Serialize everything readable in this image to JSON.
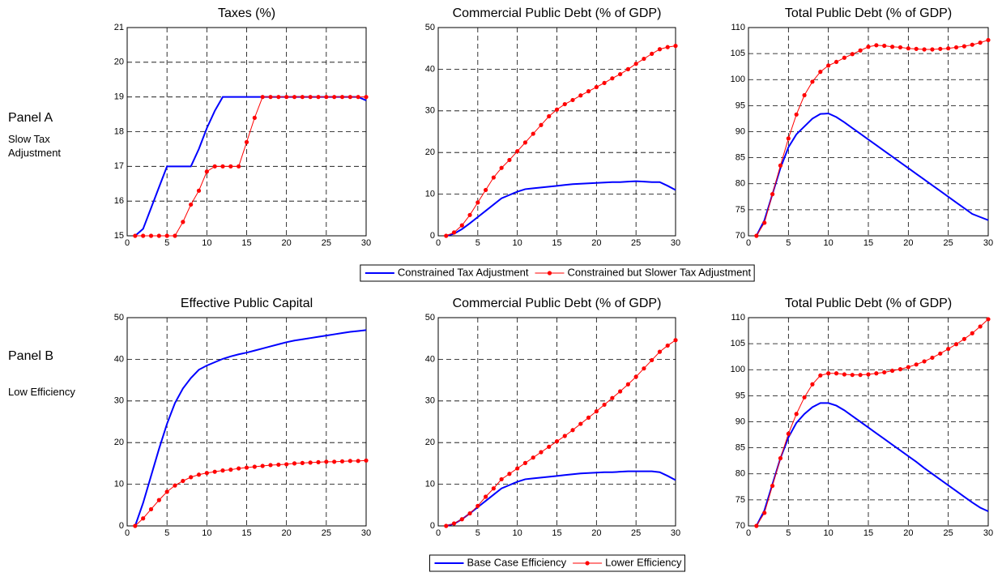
{
  "panels": [
    {
      "label": "Panel A",
      "note": "Slow Tax Adjustment"
    },
    {
      "label": "Panel B",
      "note": "Low Efficiency"
    }
  ],
  "chart_data": [
    {
      "type": "line",
      "title": "Taxes (%)",
      "x": [
        1,
        2,
        3,
        4,
        5,
        6,
        7,
        8,
        9,
        10,
        11,
        12,
        13,
        14,
        15,
        16,
        17,
        18,
        19,
        20,
        21,
        22,
        23,
        24,
        25,
        26,
        27,
        28,
        29,
        30
      ],
      "xlim": [
        0,
        30
      ],
      "xticks": [
        0,
        5,
        10,
        15,
        20,
        25,
        30
      ],
      "ylim": [
        15,
        21
      ],
      "yticks": [
        15,
        16,
        17,
        18,
        19,
        20,
        21
      ],
      "grid": true,
      "series": [
        {
          "name": "Constrained Tax Adjustment",
          "color": "#0000ff",
          "marker": false,
          "values": [
            15,
            15.2,
            15.8,
            16.4,
            17,
            17,
            17,
            17,
            17.5,
            18.1,
            18.6,
            19,
            19,
            19,
            19,
            19,
            19,
            19,
            19,
            19,
            19,
            19,
            19,
            19,
            19,
            19,
            19,
            19,
            19,
            18.9
          ]
        },
        {
          "name": "Constrained but Slower Tax Adjustment",
          "color": "#ff0000",
          "marker": true,
          "values": [
            15,
            15,
            15,
            15,
            15,
            15,
            15.4,
            15.9,
            16.3,
            16.85,
            17,
            17,
            17,
            17,
            17.7,
            18.4,
            19,
            19,
            19,
            19,
            19,
            19,
            19,
            19,
            19,
            19,
            19,
            19,
            19,
            19
          ]
        }
      ]
    },
    {
      "type": "line",
      "title": "Commercial Public Debt (% of GDP)",
      "x": [
        1,
        2,
        3,
        4,
        5,
        6,
        7,
        8,
        9,
        10,
        11,
        12,
        13,
        14,
        15,
        16,
        17,
        18,
        19,
        20,
        21,
        22,
        23,
        24,
        25,
        26,
        27,
        28,
        29,
        30
      ],
      "xlim": [
        0,
        30
      ],
      "xticks": [
        0,
        5,
        10,
        15,
        20,
        25,
        30
      ],
      "ylim": [
        0,
        50
      ],
      "yticks": [
        0,
        10,
        20,
        30,
        40,
        50
      ],
      "grid": true,
      "series": [
        {
          "name": "Constrained Tax Adjustment",
          "color": "#0000ff",
          "marker": false,
          "values": [
            0,
            0.5,
            1.6,
            3,
            4.5,
            6,
            7.5,
            9,
            9.8,
            10.6,
            11.2,
            11.4,
            11.6,
            11.8,
            12,
            12.2,
            12.4,
            12.5,
            12.6,
            12.7,
            12.8,
            12.9,
            12.9,
            13,
            13.1,
            13,
            12.9,
            12.9,
            12,
            11
          ]
        },
        {
          "name": "Constrained but Slower Tax Adjustment",
          "color": "#ff0000",
          "marker": true,
          "values": [
            0,
            0.8,
            2.5,
            5,
            8,
            11,
            14,
            16.3,
            18.2,
            20.3,
            22.4,
            24.5,
            26.6,
            28.7,
            30.3,
            31.6,
            32.6,
            33.7,
            34.7,
            35.7,
            36.7,
            37.8,
            38.8,
            40,
            41.3,
            42.5,
            43.7,
            44.8,
            45.3,
            45.6
          ]
        }
      ]
    },
    {
      "type": "line",
      "title": "Total Public Debt (% of GDP)",
      "x": [
        1,
        2,
        3,
        4,
        5,
        6,
        7,
        8,
        9,
        10,
        11,
        12,
        13,
        14,
        15,
        16,
        17,
        18,
        19,
        20,
        21,
        22,
        23,
        24,
        25,
        26,
        27,
        28,
        29,
        30
      ],
      "xlim": [
        0,
        30
      ],
      "xticks": [
        0,
        5,
        10,
        15,
        20,
        25,
        30
      ],
      "ylim": [
        70,
        110
      ],
      "yticks": [
        70,
        75,
        80,
        85,
        90,
        95,
        100,
        105,
        110
      ],
      "grid": true,
      "series": [
        {
          "name": "Constrained Tax Adjustment",
          "color": "#0000ff",
          "marker": false,
          "values": [
            70,
            73,
            78,
            83,
            87,
            89.5,
            91,
            92.5,
            93.4,
            93.5,
            92.8,
            91.8,
            90.7,
            89.6,
            88.5,
            87.4,
            86.3,
            85.2,
            84.1,
            83,
            81.9,
            80.8,
            79.7,
            78.6,
            77.5,
            76.4,
            75.3,
            74.2,
            73.6,
            73
          ]
        },
        {
          "name": "Constrained but Slower Tax Adjustment",
          "color": "#ff0000",
          "marker": true,
          "values": [
            70,
            72.5,
            78,
            83.5,
            88.7,
            93.3,
            97,
            99.6,
            101.5,
            102.7,
            103.4,
            104.2,
            104.9,
            105.6,
            106.3,
            106.6,
            106.5,
            106.3,
            106.2,
            106,
            105.9,
            105.8,
            105.8,
            105.9,
            106,
            106.2,
            106.4,
            106.7,
            107.1,
            107.6
          ]
        }
      ]
    },
    {
      "type": "line",
      "title": "Effective Public Capital",
      "x": [
        1,
        2,
        3,
        4,
        5,
        6,
        7,
        8,
        9,
        10,
        11,
        12,
        13,
        14,
        15,
        16,
        17,
        18,
        19,
        20,
        21,
        22,
        23,
        24,
        25,
        26,
        27,
        28,
        29,
        30
      ],
      "xlim": [
        0,
        30
      ],
      "xticks": [
        0,
        5,
        10,
        15,
        20,
        25,
        30
      ],
      "ylim": [
        0,
        50
      ],
      "yticks": [
        0,
        10,
        20,
        30,
        40,
        50
      ],
      "grid": true,
      "series": [
        {
          "name": "Base Case Efficiency",
          "color": "#0000ff",
          "marker": false,
          "values": [
            0,
            5.5,
            12,
            18.5,
            24.5,
            29.5,
            33,
            35.5,
            37.5,
            38.5,
            39.3,
            40.1,
            40.7,
            41.2,
            41.6,
            42.1,
            42.6,
            43.1,
            43.6,
            44.1,
            44.5,
            44.8,
            45.1,
            45.4,
            45.7,
            46,
            46.3,
            46.6,
            46.8,
            47
          ]
        },
        {
          "name": "Lower Efficiency",
          "color": "#ff0000",
          "marker": true,
          "values": [
            0,
            1.8,
            4,
            6.2,
            8.2,
            9.7,
            10.8,
            11.7,
            12.3,
            12.7,
            13,
            13.3,
            13.5,
            13.8,
            14,
            14.2,
            14.4,
            14.6,
            14.7,
            14.8,
            15,
            15.1,
            15.2,
            15.3,
            15.4,
            15.4,
            15.5,
            15.6,
            15.6,
            15.7
          ]
        }
      ]
    },
    {
      "type": "line",
      "title": "Commercial Public Debt (% of GDP)",
      "x": [
        1,
        2,
        3,
        4,
        5,
        6,
        7,
        8,
        9,
        10,
        11,
        12,
        13,
        14,
        15,
        16,
        17,
        18,
        19,
        20,
        21,
        22,
        23,
        24,
        25,
        26,
        27,
        28,
        29,
        30
      ],
      "xlim": [
        0,
        30
      ],
      "xticks": [
        0,
        5,
        10,
        15,
        20,
        25,
        30
      ],
      "ylim": [
        0,
        50
      ],
      "yticks": [
        0,
        10,
        20,
        30,
        40,
        50
      ],
      "grid": true,
      "series": [
        {
          "name": "Base Case Efficiency",
          "color": "#0000ff",
          "marker": false,
          "values": [
            0,
            0.5,
            1.6,
            3,
            4.5,
            6,
            7.5,
            9,
            9.8,
            10.6,
            11.2,
            11.4,
            11.6,
            11.8,
            12,
            12.2,
            12.4,
            12.6,
            12.7,
            12.8,
            12.9,
            12.9,
            13,
            13.1,
            13.1,
            13.1,
            13.1,
            12.9,
            12,
            11
          ]
        },
        {
          "name": "Lower Efficiency",
          "color": "#ff0000",
          "marker": true,
          "values": [
            0,
            0.6,
            1.6,
            3,
            4.8,
            7,
            9,
            11.2,
            12.5,
            13.8,
            15.1,
            16.4,
            17.7,
            19,
            20.3,
            21.6,
            23,
            24.5,
            26,
            27.5,
            29.1,
            30.7,
            32.3,
            34,
            35.8,
            37.8,
            39.8,
            41.8,
            43.3,
            44.6
          ]
        }
      ]
    },
    {
      "type": "line",
      "title": "Total Public Debt (% of GDP)",
      "x": [
        1,
        2,
        3,
        4,
        5,
        6,
        7,
        8,
        9,
        10,
        11,
        12,
        13,
        14,
        15,
        16,
        17,
        18,
        19,
        20,
        21,
        22,
        23,
        24,
        25,
        26,
        27,
        28,
        29,
        30
      ],
      "xlim": [
        0,
        30
      ],
      "xticks": [
        0,
        5,
        10,
        15,
        20,
        25,
        30
      ],
      "ylim": [
        70,
        110
      ],
      "yticks": [
        70,
        75,
        80,
        85,
        90,
        95,
        100,
        105,
        110
      ],
      "grid": true,
      "series": [
        {
          "name": "Base Case Efficiency",
          "color": "#0000ff",
          "marker": false,
          "values": [
            70,
            73,
            78,
            83,
            87,
            89.8,
            91.5,
            92.8,
            93.6,
            93.6,
            93.1,
            92.2,
            91.1,
            90,
            88.9,
            87.8,
            86.7,
            85.6,
            84.5,
            83.4,
            82.3,
            81.1,
            80,
            78.9,
            77.8,
            76.7,
            75.6,
            74.5,
            73.5,
            72.8
          ]
        },
        {
          "name": "Lower Efficiency",
          "color": "#ff0000",
          "marker": true,
          "values": [
            70,
            72.5,
            77.7,
            83,
            87.7,
            91.5,
            94.7,
            97.2,
            98.9,
            99.3,
            99.3,
            99.1,
            99,
            99,
            99.1,
            99.3,
            99.5,
            99.8,
            100.1,
            100.5,
            101,
            101.6,
            102.3,
            103.1,
            104,
            104.9,
            105.9,
            107,
            108.3,
            109.7
          ]
        }
      ]
    }
  ]
}
